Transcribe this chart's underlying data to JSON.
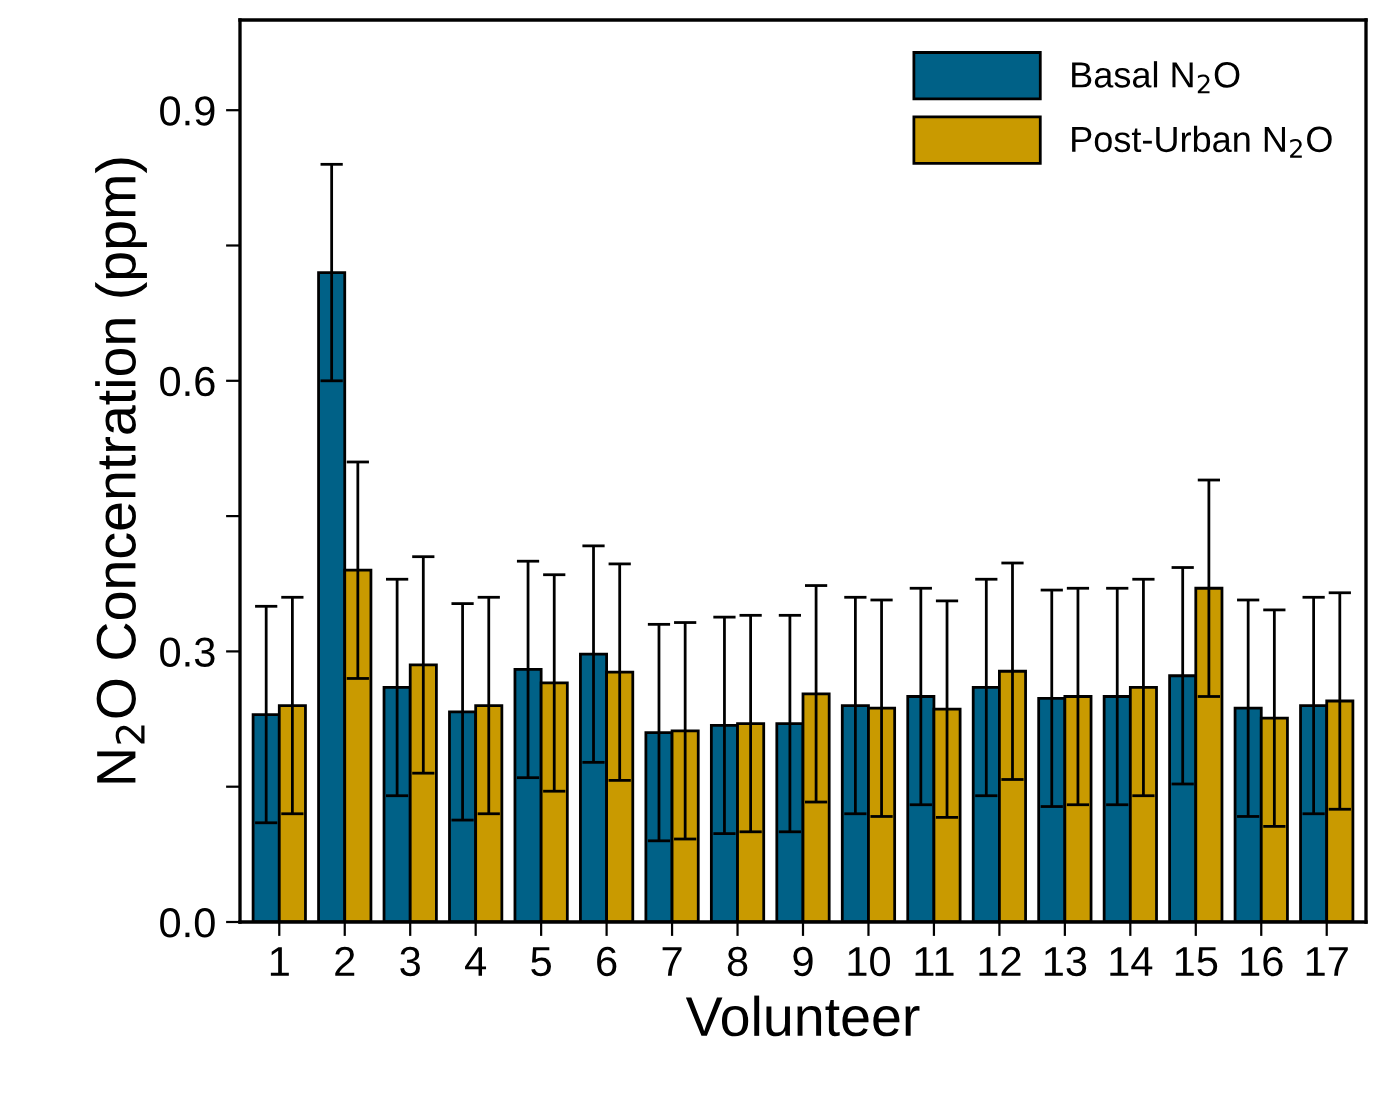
{
  "chart_data": {
    "type": "bar",
    "xlabel": "Volunteer",
    "ylabel": "N$_{2}$O Concentration (ppm)",
    "categories": [
      "1",
      "2",
      "3",
      "4",
      "5",
      "6",
      "7",
      "8",
      "9",
      "10",
      "11",
      "12",
      "13",
      "14",
      "15",
      "16",
      "17"
    ],
    "series": [
      {
        "name": "Basal N$_{2}$O",
        "color": "#006187",
        "values": [
          0.23,
          0.72,
          0.26,
          0.233,
          0.28,
          0.297,
          0.21,
          0.218,
          0.22,
          0.24,
          0.25,
          0.26,
          0.248,
          0.25,
          0.273,
          0.237,
          0.24
        ],
        "errors": [
          0.12,
          0.12,
          0.12,
          0.12,
          0.12,
          0.12,
          0.12,
          0.12,
          0.12,
          0.12,
          0.12,
          0.12,
          0.12,
          0.12,
          0.12,
          0.12,
          0.12
        ]
      },
      {
        "name": "Post-Urban N$_{2}$O",
        "color": "#c99a00",
        "values": [
          0.24,
          0.39,
          0.285,
          0.24,
          0.265,
          0.277,
          0.212,
          0.22,
          0.253,
          0.237,
          0.236,
          0.278,
          0.25,
          0.26,
          0.37,
          0.226,
          0.245
        ],
        "errors": [
          0.12,
          0.12,
          0.12,
          0.12,
          0.12,
          0.12,
          0.12,
          0.12,
          0.12,
          0.12,
          0.12,
          0.12,
          0.12,
          0.12,
          0.12,
          0.12,
          0.12
        ]
      }
    ],
    "ylim": [
      0,
      1.0
    ],
    "yticks": [
      {
        "value": 0,
        "label": "0.0"
      },
      {
        "value": 0.15,
        "label": null
      },
      {
        "value": 0.3,
        "label": "0.3"
      },
      {
        "value": 0.45,
        "label": null
      },
      {
        "value": 0.6,
        "label": "0.6"
      },
      {
        "value": 0.75,
        "label": null
      },
      {
        "value": 0.9,
        "label": "0.9"
      }
    ],
    "legend": "top right",
    "grid": false
  }
}
